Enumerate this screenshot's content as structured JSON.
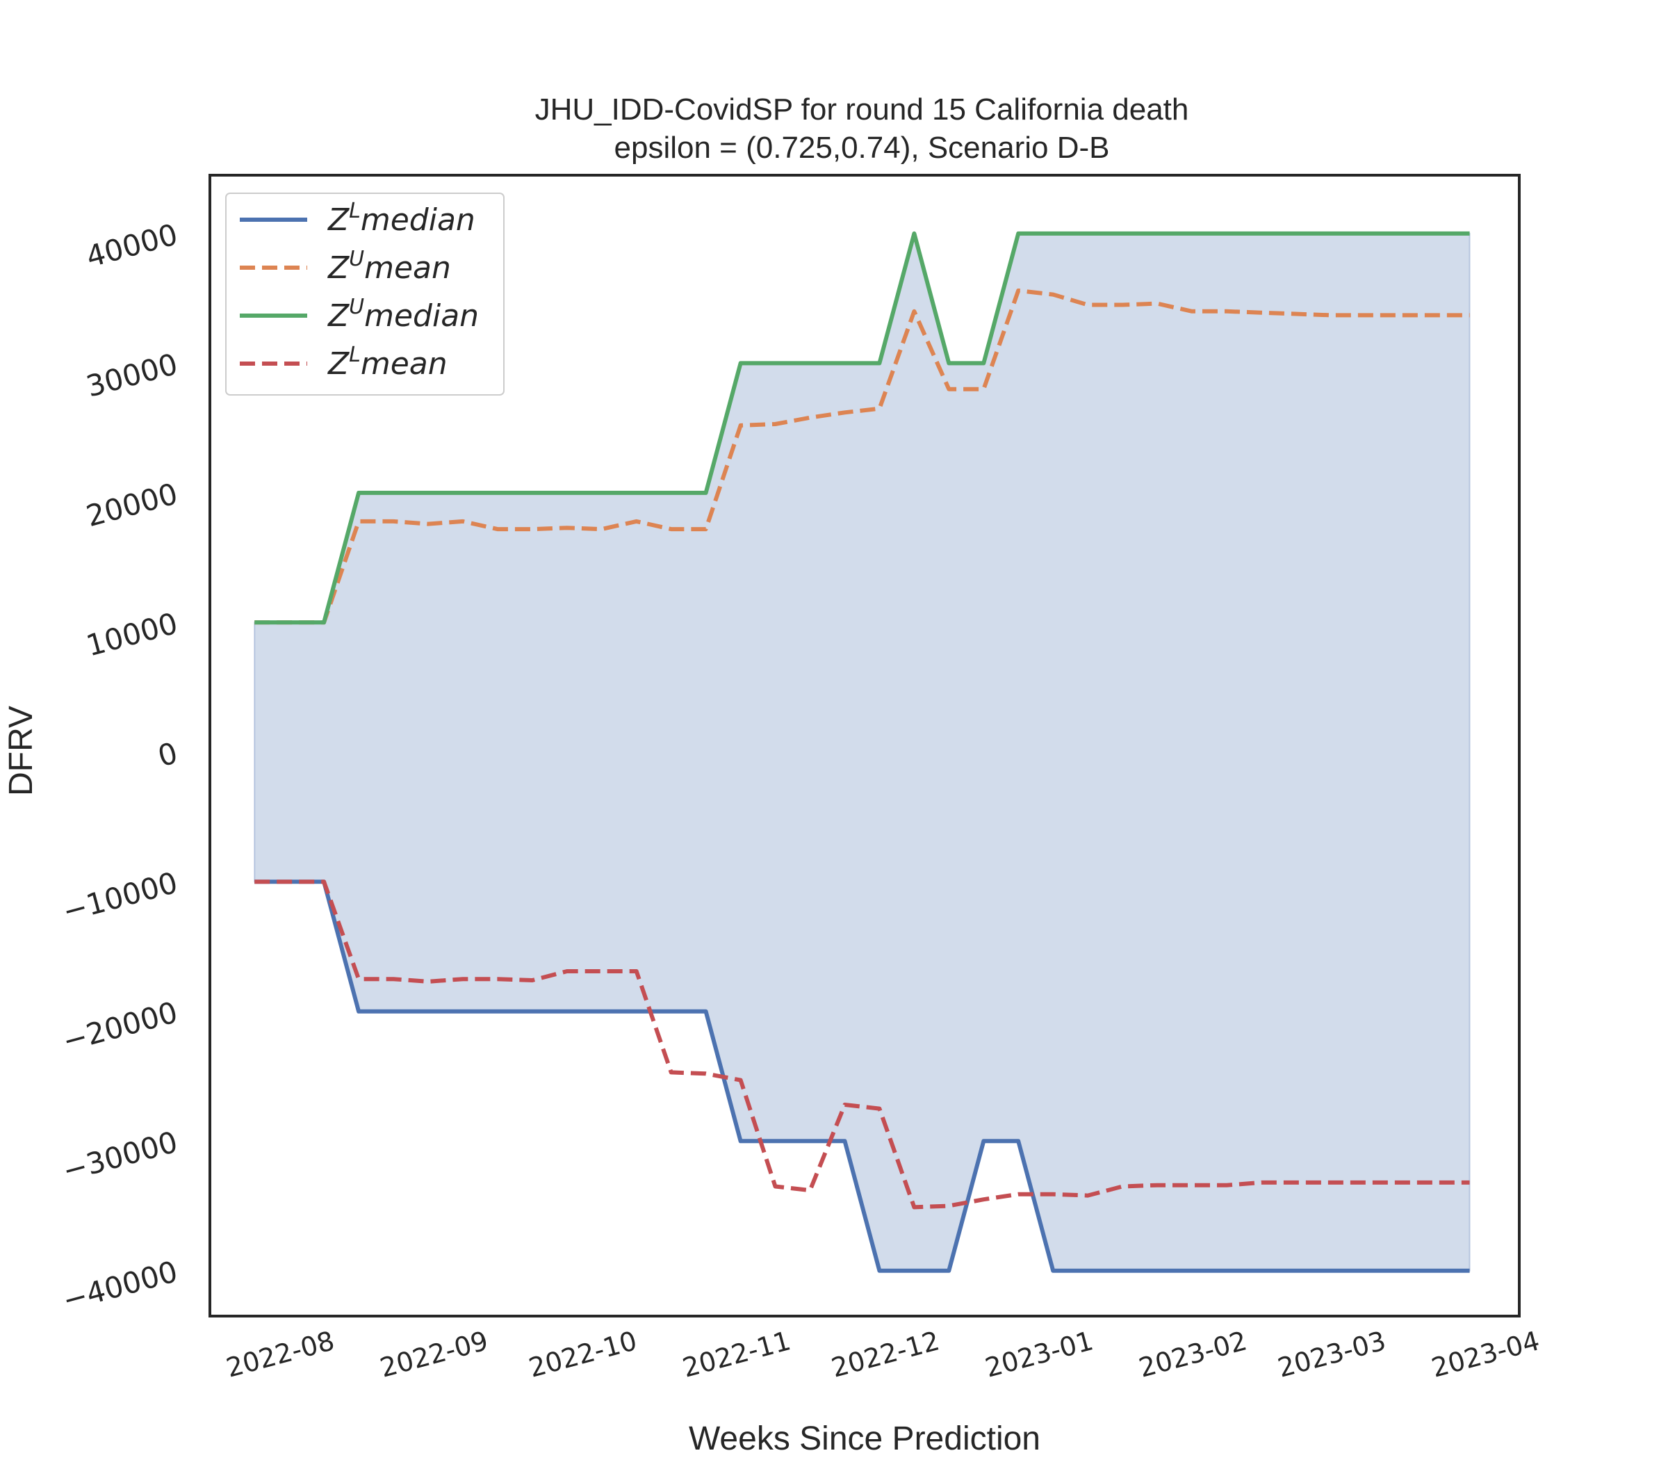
{
  "chart_data": {
    "type": "line",
    "title": "JHU_IDD-CovidSP for round 15 California  death",
    "subtitle": "epsilon = (0.725,0.74), Scenario D-B",
    "xlabel": "Weeks Since Prediction",
    "ylabel": "DFRV",
    "x_tick_labels": [
      "2022-08",
      "2022-09",
      "2022-10",
      "2022-11",
      "2022-12",
      "2023-01",
      "2023-02",
      "2023-03",
      "2023-04"
    ],
    "x_tick_dates": [
      "2022-08-01",
      "2022-09-01",
      "2022-10-01",
      "2022-11-01",
      "2022-12-01",
      "2023-01-01",
      "2023-02-01",
      "2023-03-01",
      "2023-04-01"
    ],
    "y_ticks": [
      -40000,
      -30000,
      -20000,
      -10000,
      0,
      10000,
      20000,
      30000,
      40000
    ],
    "y_tick_labels": [
      "−40000",
      "−30000",
      "−20000",
      "−10000",
      "0",
      "10000",
      "20000",
      "30000",
      "40000"
    ],
    "xlim": [
      "2022-07-15",
      "2023-04-05"
    ],
    "ylim": [
      -43500,
      44500
    ],
    "grid": false,
    "legend_position": "top-left",
    "x": [
      "2022-07-24",
      "2022-07-31",
      "2022-08-07",
      "2022-08-14",
      "2022-08-21",
      "2022-08-28",
      "2022-09-04",
      "2022-09-11",
      "2022-09-18",
      "2022-09-25",
      "2022-10-02",
      "2022-10-09",
      "2022-10-16",
      "2022-10-23",
      "2022-10-30",
      "2022-11-06",
      "2022-11-13",
      "2022-11-20",
      "2022-11-27",
      "2022-12-04",
      "2022-12-11",
      "2022-12-18",
      "2022-12-25",
      "2023-01-01",
      "2023-01-08",
      "2023-01-15",
      "2023-01-22",
      "2023-01-29",
      "2023-02-05",
      "2023-02-12",
      "2023-02-19",
      "2023-02-26",
      "2023-03-05",
      "2023-03-12",
      "2023-03-19",
      "2023-03-26"
    ],
    "series": [
      {
        "name": "Z^L median",
        "legend_base": "Z",
        "legend_sup": "L",
        "legend_rest": "median",
        "color": "#4c72b0",
        "dash": "solid",
        "values": [
          -10000,
          -10000,
          -10000,
          -20000,
          -20000,
          -20000,
          -20000,
          -20000,
          -20000,
          -20000,
          -20000,
          -20000,
          -20000,
          -20000,
          -30000,
          -30000,
          -30000,
          -30000,
          -40000,
          -40000,
          -40000,
          -30000,
          -30000,
          -40000,
          -40000,
          -40000,
          -40000,
          -40000,
          -40000,
          -40000,
          -40000,
          -40000,
          -40000,
          -40000,
          -40000,
          -40000
        ]
      },
      {
        "name": "Z^U mean",
        "legend_base": "Z",
        "legend_sup": "U",
        "legend_rest": "mean",
        "color": "#dd8452",
        "dash": "dashed",
        "values": [
          10000,
          10000,
          10000,
          17800,
          17800,
          17600,
          17800,
          17200,
          17200,
          17300,
          17200,
          17800,
          17200,
          17200,
          25200,
          25300,
          25800,
          26200,
          26500,
          34000,
          28000,
          28000,
          35600,
          35300,
          34500,
          34500,
          34600,
          34000,
          34000,
          33900,
          33800,
          33700,
          33700,
          33700,
          33700,
          33700
        ]
      },
      {
        "name": "Z^U median",
        "legend_base": "Z",
        "legend_sup": "U",
        "legend_rest": "median",
        "color": "#55a868",
        "dash": "solid",
        "values": [
          10000,
          10000,
          10000,
          20000,
          20000,
          20000,
          20000,
          20000,
          20000,
          20000,
          20000,
          20000,
          20000,
          20000,
          30000,
          30000,
          30000,
          30000,
          30000,
          40000,
          30000,
          30000,
          40000,
          40000,
          40000,
          40000,
          40000,
          40000,
          40000,
          40000,
          40000,
          40000,
          40000,
          40000,
          40000,
          40000
        ]
      },
      {
        "name": "Z^L mean",
        "legend_base": "Z",
        "legend_sup": "L",
        "legend_rest": "mean",
        "color": "#c44e52",
        "dash": "dashed",
        "values": [
          -10000,
          -10000,
          -10000,
          -17500,
          -17500,
          -17700,
          -17500,
          -17500,
          -17600,
          -16900,
          -16900,
          -16900,
          -24700,
          -24800,
          -25300,
          -33500,
          -33800,
          -27200,
          -27500,
          -35100,
          -35000,
          -34500,
          -34100,
          -34100,
          -34200,
          -33500,
          -33400,
          -33400,
          -33400,
          -33200,
          -33200,
          -33200,
          -33200,
          -33200,
          -33200,
          -33200
        ]
      }
    ],
    "fill_between": {
      "upper_series": "Z^U median",
      "lower_series": "Z^L median",
      "color": "#4c72b0",
      "alpha": 0.25
    }
  }
}
